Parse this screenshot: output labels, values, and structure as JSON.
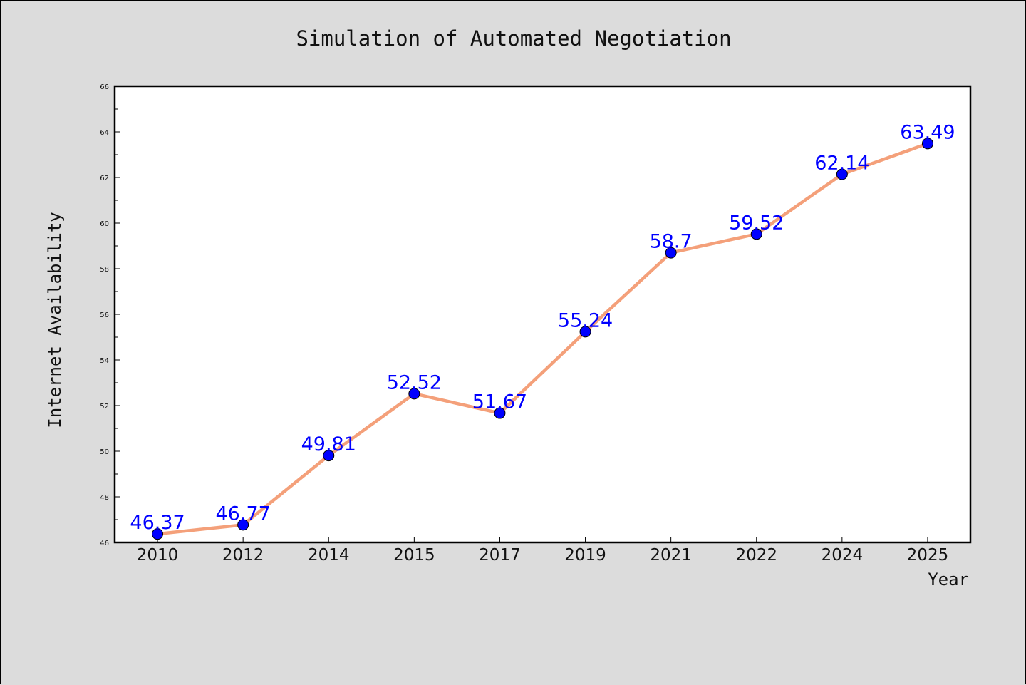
{
  "chart_data": {
    "type": "line",
    "title": "Simulation of Automated Negotiation",
    "xlabel": "Year",
    "ylabel": "Internet Availability",
    "categories": [
      "2010",
      "2012",
      "2014",
      "2015",
      "2017",
      "2019",
      "2021",
      "2022",
      "2024",
      "2025"
    ],
    "series": [
      {
        "values": [
          46.37,
          46.77,
          49.81,
          52.52,
          51.67,
          55.24,
          58.7,
          59.52,
          62.14,
          63.49
        ],
        "labels": [
          "46.37",
          "46.77",
          "49.81",
          "52.52",
          "51.67",
          "55.24",
          "58.7",
          "59.52",
          "62.14",
          "63.49"
        ]
      }
    ],
    "ylim": [
      46,
      66
    ],
    "yticks": [
      "46",
      "48",
      "50",
      "52",
      "54",
      "56",
      "58",
      "60",
      "62",
      "64",
      "66"
    ],
    "grid": false,
    "colors": {
      "line": "#f4a07a",
      "marker": "#0000ff",
      "label": "#0000ff",
      "background": "#dcdcdc",
      "plot_background": "#ffffff"
    }
  }
}
